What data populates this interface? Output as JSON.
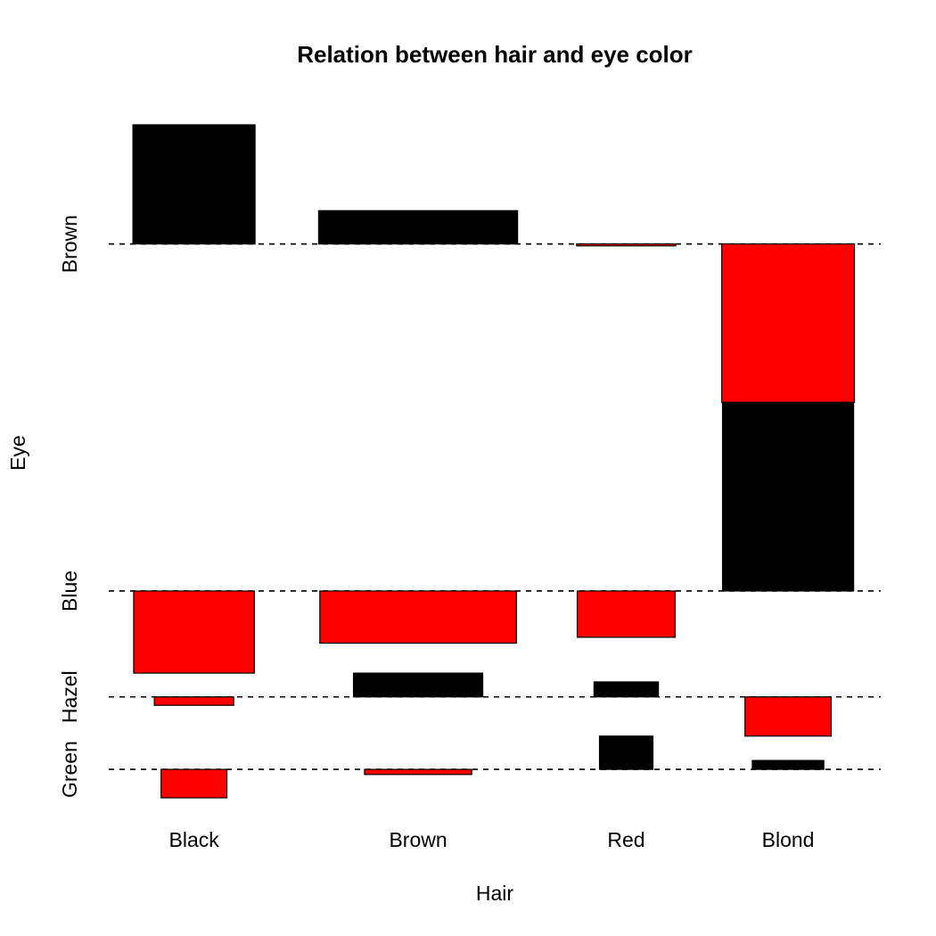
{
  "chart_data": {
    "type": "bar",
    "title": "Relation between hair and eye color",
    "xlabel": "Hair",
    "ylabel": "Eye",
    "x_categories": [
      "Black",
      "Brown",
      "Red",
      "Blond"
    ],
    "x_proportions": [
      0.182,
      0.483,
      0.12,
      0.215
    ],
    "y_categories": [
      "Brown",
      "Blue",
      "Hazel",
      "Green"
    ],
    "y_proportions": [
      0.372,
      0.363,
      0.157,
      0.108
    ],
    "residuals": [
      [
        4.4,
        1.23,
        -0.07,
        -5.85
      ],
      [
        -3.07,
        -1.95,
        -1.73,
        7.05
      ],
      [
        -0.48,
        1.35,
        0.85,
        -2.23
      ],
      [
        -1.95,
        -0.35,
        2.28,
        0.61
      ]
    ],
    "colors": {
      "positive": "#000000",
      "negative": "#ff0000"
    },
    "grid": false,
    "legend": "none"
  }
}
